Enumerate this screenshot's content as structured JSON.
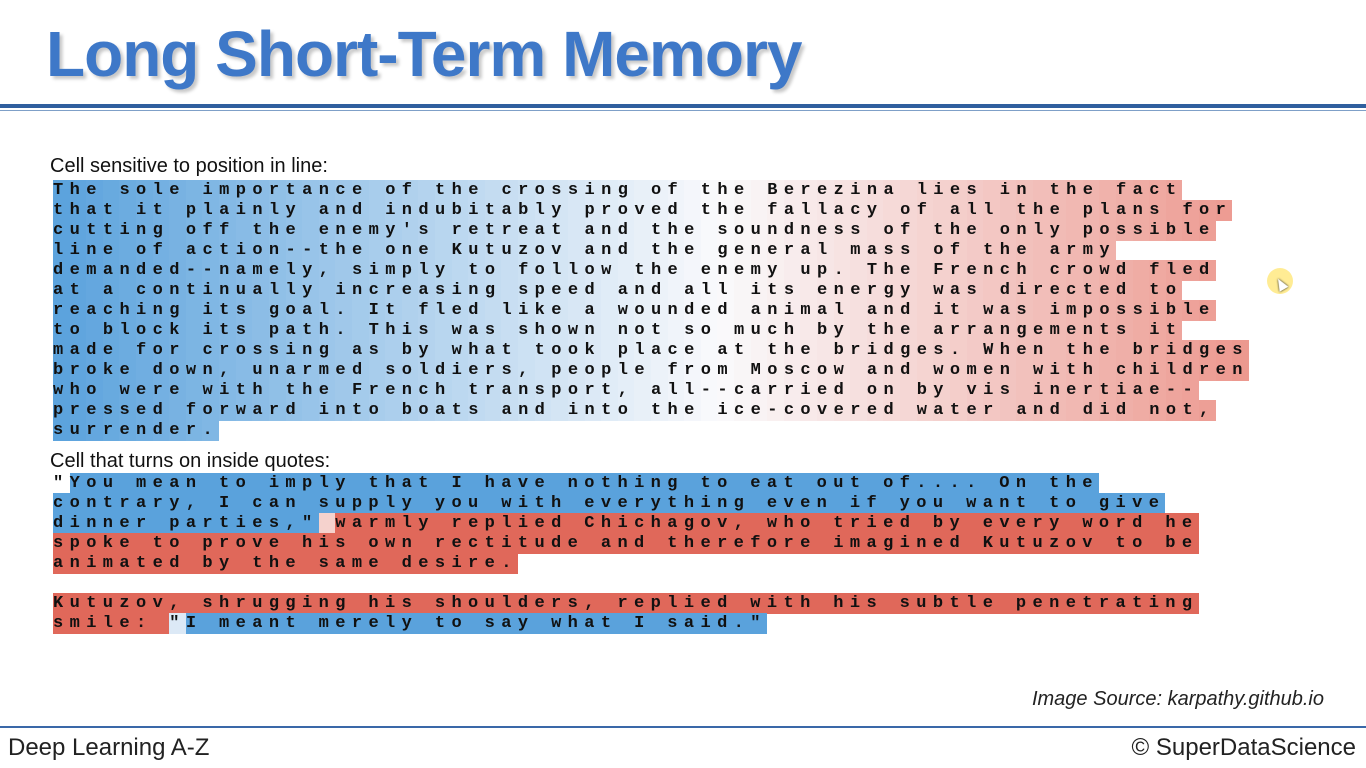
{
  "slide": {
    "title": "Long Short-Term Memory",
    "image_source": "Image Source: karpathy.github.io"
  },
  "footer": {
    "left": "Deep Learning A-Z",
    "right": "© SuperDataScience"
  },
  "sections": [
    {
      "label": "Cell sensitive to position in line:",
      "lines": [
        "The sole importance of the crossing of the Berezina lies in the fact",
        "that it plainly and indubitably proved the fallacy of all the plans for",
        "cutting off the enemy's retreat and the soundness of the only possible",
        "line of action--the one Kutuzov and the general mass of the army",
        "demanded--namely, simply to follow the enemy up. The French crowd fled",
        "at a continually increasing speed and all its energy was directed to",
        "reaching its goal. It fled like a wounded animal and it was impossible",
        "to block its path. This was shown not so much by the arrangements it",
        "made for crossing as by what took place at the bridges. When the bridges",
        "broke down, unarmed soldiers, people from Moscow and women with children",
        "who were with the French transport, all--carried on by vis inertiae--",
        "pressed forward into boats and into the ice-covered water and did not,",
        "surrender."
      ]
    },
    {
      "label": "Cell that turns on inside quotes:",
      "segments": [
        [
          {
            "t": "\"",
            "c": "#ffffff"
          },
          {
            "t": "You mean to imply that I have nothing to eat out of.... On the",
            "c": "#5aa2dc"
          }
        ],
        [
          {
            "t": "contrary, I can supply you with everything even if you want to give",
            "c": "#5aa2dc"
          }
        ],
        [
          {
            "t": "dinner parties,\"",
            "c": "#5aa2dc"
          },
          {
            "t": " ",
            "c": "#f5d2cd"
          },
          {
            "t": "warmly replied Chichagov, who tried by every word he",
            "c": "#e0685a"
          }
        ],
        [
          {
            "t": "spoke to prove his own rectitude and therefore imagined Kutuzov to be",
            "c": "#e0685a"
          }
        ],
        [
          {
            "t": "animated by the same desire.",
            "c": "#e0685a"
          }
        ],
        [
          {
            "t": "",
            "c": "#ffffff"
          }
        ],
        [
          {
            "t": "Kutuzov, shrugging his shoulders, replied with his subtle penetrating",
            "c": "#e0685a"
          }
        ],
        [
          {
            "t": "smile: ",
            "c": "#e0685a"
          },
          {
            "t": "\"",
            "c": "#dce9f6"
          },
          {
            "t": "I meant merely to say what I said.\"",
            "c": "#5aa2dc"
          }
        ]
      ]
    }
  ],
  "colors": {
    "title": "#3e78c8",
    "blue_strong": "#5aa2dc",
    "red_strong": "#e0685a",
    "neutral": "#ffffff"
  }
}
